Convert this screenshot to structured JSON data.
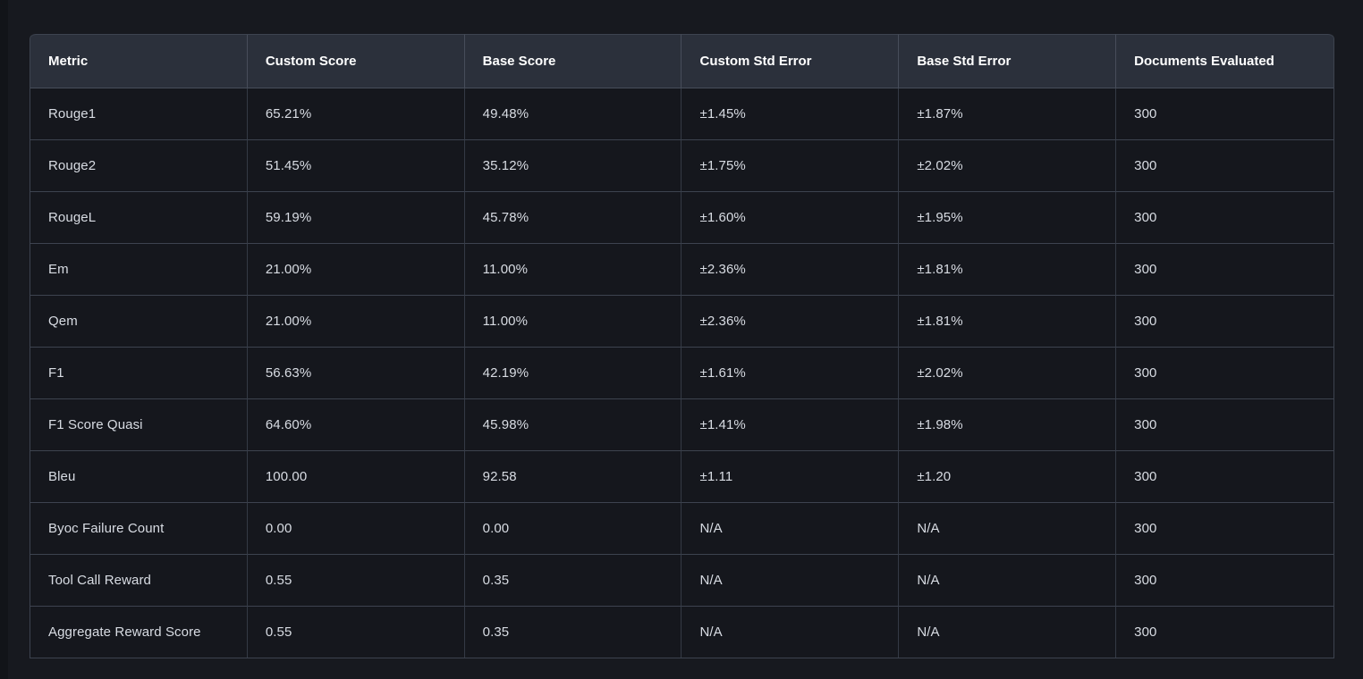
{
  "colors": {
    "page_background": "#17191f",
    "header_background": "#2b303b",
    "row_background": "#15171d",
    "border": "#3d434f",
    "header_text": "#ffffff",
    "body_text": "#d8dce3"
  },
  "table": {
    "columns": [
      {
        "key": "metric",
        "label": "Metric"
      },
      {
        "key": "custom-score",
        "label": "Custom Score"
      },
      {
        "key": "base-score",
        "label": "Base Score"
      },
      {
        "key": "custom-std-error",
        "label": "Custom Std Error"
      },
      {
        "key": "base-std-error",
        "label": "Base Std Error"
      },
      {
        "key": "documents-evaluated",
        "label": "Documents Evaluated"
      }
    ],
    "rows": [
      [
        "Rouge1",
        "65.21%",
        "49.48%",
        "±1.45%",
        "±1.87%",
        "300"
      ],
      [
        "Rouge2",
        "51.45%",
        "35.12%",
        "±1.75%",
        "±2.02%",
        "300"
      ],
      [
        "RougeL",
        "59.19%",
        "45.78%",
        "±1.60%",
        "±1.95%",
        "300"
      ],
      [
        "Em",
        "21.00%",
        "11.00%",
        "±2.36%",
        "±1.81%",
        "300"
      ],
      [
        "Qem",
        "21.00%",
        "11.00%",
        "±2.36%",
        "±1.81%",
        "300"
      ],
      [
        "F1",
        "56.63%",
        "42.19%",
        "±1.61%",
        "±2.02%",
        "300"
      ],
      [
        "F1 Score Quasi",
        "64.60%",
        "45.98%",
        "±1.41%",
        "±1.98%",
        "300"
      ],
      [
        "Bleu",
        "100.00",
        "92.58",
        "±1.11",
        "±1.20",
        "300"
      ],
      [
        "Byoc Failure Count",
        "0.00",
        "0.00",
        "N/A",
        "N/A",
        "300"
      ],
      [
        "Tool Call Reward",
        "0.55",
        "0.35",
        "N/A",
        "N/A",
        "300"
      ],
      [
        "Aggregate Reward Score",
        "0.55",
        "0.35",
        "N/A",
        "N/A",
        "300"
      ]
    ]
  }
}
